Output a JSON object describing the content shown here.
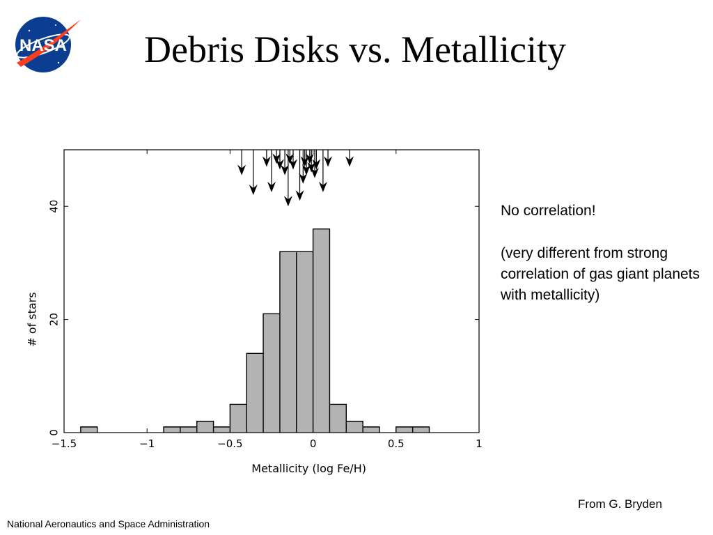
{
  "slide": {
    "title": "Debris Disks vs. Metallicity",
    "note_line1": "No correlation!",
    "note_line2": "(very different from strong correlation of gas giant planets with metallicity)",
    "credit": "From G. Bryden",
    "footer": "National Aeronautics and Space Administration",
    "logo_text": "NASA",
    "colors": {
      "logo_blue": "#0b3d91",
      "logo_red": "#fc3d21",
      "bar_fill": "#b3b3b3"
    }
  },
  "chart_data": {
    "type": "bar",
    "histogram": true,
    "xlabel": "Metallicity (log Fe/H)",
    "ylabel": "# of stars",
    "xlim": [
      -1.5,
      1.0
    ],
    "ylim": [
      0,
      50
    ],
    "xticks": [
      -1.5,
      -1,
      -0.5,
      0,
      0.5,
      1
    ],
    "xtick_labels": [
      "−1.5",
      "−1",
      "−0.5",
      "0",
      "0.5",
      "1"
    ],
    "yticks": [
      0,
      20,
      40
    ],
    "ytick_labels": [
      "0",
      "20",
      "40"
    ],
    "bin_width": 0.1,
    "bins": [
      {
        "x0": -1.4,
        "count": 1
      },
      {
        "x0": -0.9,
        "count": 1
      },
      {
        "x0": -0.8,
        "count": 1
      },
      {
        "x0": -0.7,
        "count": 2
      },
      {
        "x0": -0.6,
        "count": 1
      },
      {
        "x0": -0.5,
        "count": 5
      },
      {
        "x0": -0.4,
        "count": 14
      },
      {
        "x0": -0.3,
        "count": 21
      },
      {
        "x0": -0.2,
        "count": 32
      },
      {
        "x0": -0.1,
        "count": 32
      },
      {
        "x0": 0.0,
        "count": 36
      },
      {
        "x0": 0.1,
        "count": 5
      },
      {
        "x0": 0.2,
        "count": 2
      },
      {
        "x0": 0.3,
        "count": 1
      },
      {
        "x0": 0.5,
        "count": 1
      },
      {
        "x0": 0.6,
        "count": 1
      }
    ],
    "markers": {
      "kind": "debris-disk stars (arrows)",
      "points": [
        {
          "x": -0.43,
          "tip": 45.5
        },
        {
          "x": -0.36,
          "tip": 42.0
        },
        {
          "x": -0.28,
          "tip": 47.0
        },
        {
          "x": -0.25,
          "tip": 42.5
        },
        {
          "x": -0.22,
          "tip": 47.5
        },
        {
          "x": -0.2,
          "tip": 46.5
        },
        {
          "x": -0.17,
          "tip": 45.5
        },
        {
          "x": -0.15,
          "tip": 40.0
        },
        {
          "x": -0.14,
          "tip": 47.5
        },
        {
          "x": -0.12,
          "tip": 46.5
        },
        {
          "x": -0.08,
          "tip": 41.0
        },
        {
          "x": -0.06,
          "tip": 44.0
        },
        {
          "x": -0.05,
          "tip": 47.0
        },
        {
          "x": -0.04,
          "tip": 45.5
        },
        {
          "x": -0.02,
          "tip": 47.5
        },
        {
          "x": -0.01,
          "tip": 46.0
        },
        {
          "x": 0.01,
          "tip": 45.0
        },
        {
          "x": 0.02,
          "tip": 46.5
        },
        {
          "x": 0.06,
          "tip": 42.5
        },
        {
          "x": 0.09,
          "tip": 47.0
        },
        {
          "x": 0.22,
          "tip": 47.0
        }
      ]
    }
  }
}
